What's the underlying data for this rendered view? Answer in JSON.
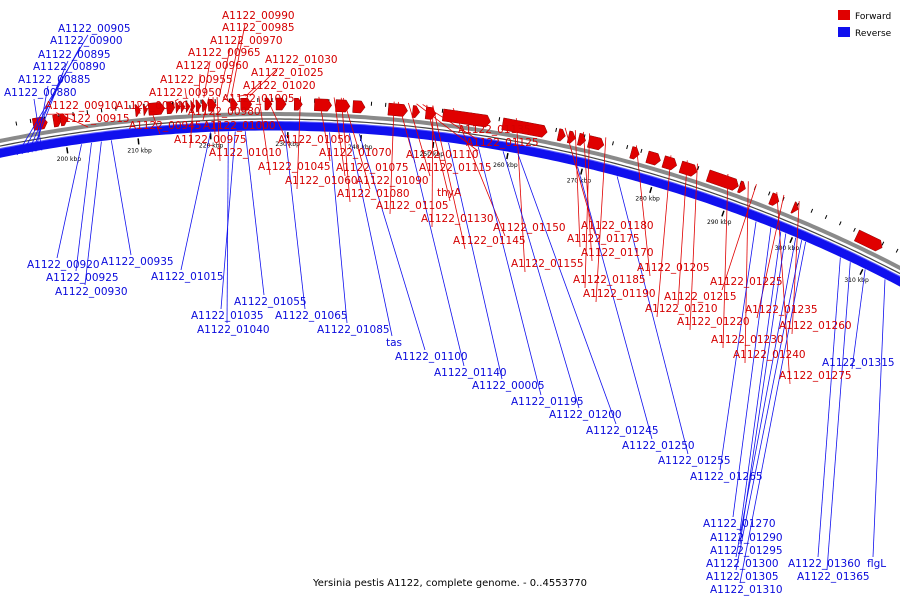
{
  "caption": "Yersinia pestis A1122, complete genome. - 0..4553770",
  "legend": {
    "forward_label": "Forward",
    "reverse_label": "Reverse",
    "forward_color": "#e00000",
    "reverse_color": "#1010ee"
  },
  "ticks": [
    "200 kbp",
    "210 kbp",
    "220 kbp",
    "230 kbp",
    "240 kbp",
    "250 kbp",
    "260 kbp",
    "270 kbp",
    "280 kbp",
    "290 kbp",
    "300 kbp",
    "310 kbp"
  ],
  "forward_labels": [
    "A1122_00990",
    "A1122_00985",
    "A1122_00970",
    "A1122_00965",
    "A1122_00960",
    "A1122_00955",
    "A1122_00950",
    "A1122_00940",
    "A1122_00945",
    "A1122_00980",
    "A1122_00975",
    "A1122_01030",
    "A1122_01025",
    "A1122_01020",
    "A1122_01005",
    "A1122_01000",
    "A1122_01010",
    "A1122_00910",
    "A1122_00915",
    "A1122_01050",
    "A1122_01045",
    "A1122_01070",
    "A1122_01060",
    "A1122_01075",
    "A1122_01090",
    "A1122_01080",
    "A1122_01135",
    "A1122_01125",
    "A1122_01110",
    "A1122_01115",
    "thyA",
    "A1122_01105",
    "A1122_01130",
    "A1122_01150",
    "A1122_01145",
    "A1122_01180",
    "A1122_01175",
    "A1122_01170",
    "A1122_01155",
    "A1122_01185",
    "A1122_01190",
    "A1122_01205",
    "A1122_01225",
    "A1122_01215",
    "A1122_01210",
    "A1122_01220",
    "A1122_01235",
    "A1122_01260",
    "A1122_01230",
    "A1122_01240",
    "A1122_01275"
  ],
  "reverse_labels": [
    "A1122_00905",
    "A1122_00900",
    "A1122_00895",
    "A1122_00890",
    "A1122_00885",
    "A1122_00880",
    "A1122_00920",
    "A1122_00925",
    "A1122_00935",
    "A1122_00930",
    "A1122_01015",
    "A1122_01055",
    "A1122_01035",
    "A1122_01065",
    "A1122_01040",
    "A1122_01085",
    "tas",
    "A1122_01100",
    "A1122_01140",
    "A1122_00005",
    "A1122_01195",
    "A1122_01200",
    "A1122_01245",
    "A1122_01250",
    "A1122_01255",
    "A1122_01265",
    "A1122_01315",
    "A1122_01270",
    "A1122_01290",
    "A1122_01295",
    "A1122_01300",
    "A1122_01305",
    "A1122_01310",
    "A1122_01360",
    "A1122_01365",
    "flgL"
  ]
}
